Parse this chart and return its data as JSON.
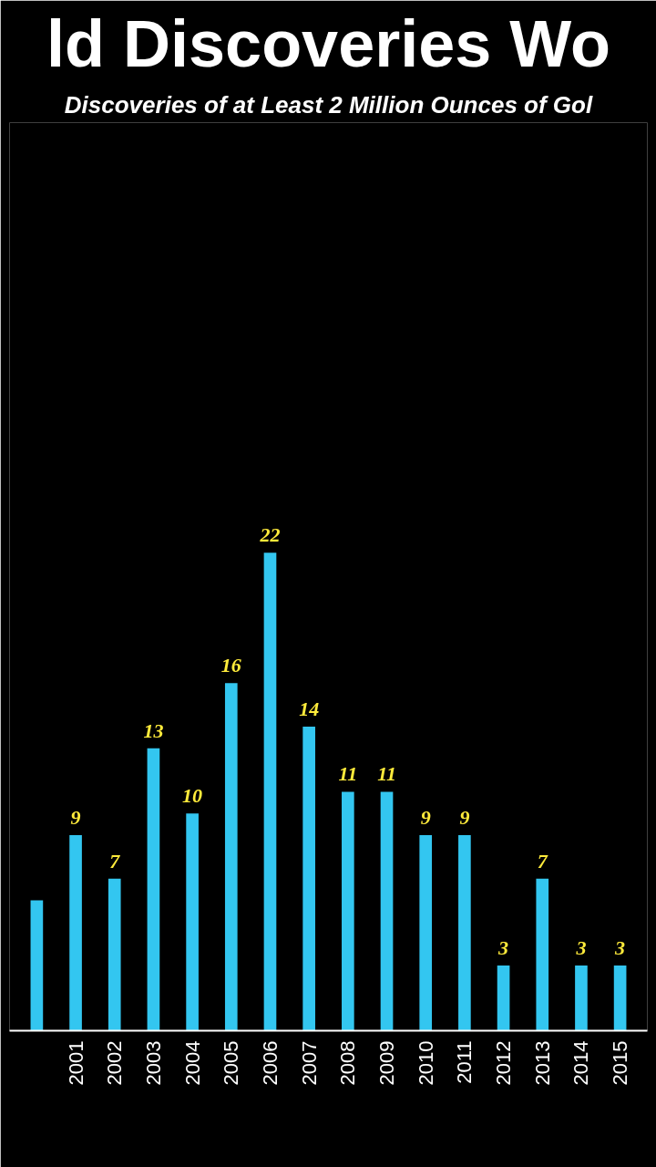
{
  "chart_data": {
    "type": "bar",
    "title": "ld Discoveries Wo",
    "subtitle": "Discoveries of at Least 2 Million Ounces of Gol",
    "categories": [
      null,
      "2001",
      "2002",
      "2003",
      "2004",
      "2005",
      "2006",
      "2007",
      "2008",
      "2009",
      "2010",
      "2011",
      "2012",
      "2013",
      "2014",
      "2015"
    ],
    "values": [
      6,
      9,
      7,
      13,
      10,
      16,
      22,
      14,
      11,
      11,
      9,
      9,
      3,
      7,
      3,
      3
    ],
    "value_labels": [
      null,
      "9",
      "7",
      "13",
      "10",
      "16",
      "22",
      "14",
      "11",
      "11",
      "9",
      "9",
      "3",
      "7",
      "3",
      "3"
    ],
    "color": "#33c6f0",
    "grid": false,
    "tick_labels": "x"
  }
}
